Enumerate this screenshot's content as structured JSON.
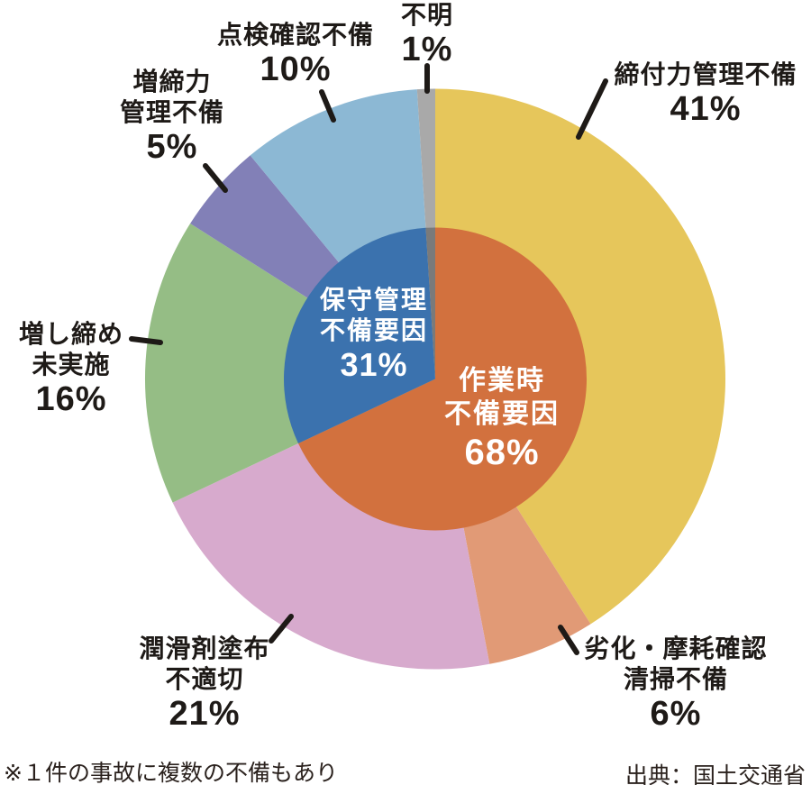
{
  "chart_data": {
    "type": "pie",
    "subtype": "nested-donut",
    "direction": "clockwise",
    "start_angle_deg": 0,
    "outer_ring": {
      "slices": [
        {
          "label": "締付力管理不備",
          "label_lines": [
            "締付力管理不備"
          ],
          "pct_label": "41%",
          "value": 41,
          "color": "#e6c65b"
        },
        {
          "label": "劣化・摩耗確認清掃不備",
          "label_lines": [
            "劣化・摩耗確認",
            "清掃不備"
          ],
          "pct_label": "6%",
          "value": 6,
          "color": "#e19a76"
        },
        {
          "label": "潤滑剤塗布不適切",
          "label_lines": [
            "潤滑剤塗布",
            "不適切"
          ],
          "pct_label": "21%",
          "value": 21,
          "color": "#d7aacd"
        },
        {
          "label": "増し締め未実施",
          "label_lines": [
            "増し締め",
            "未実施"
          ],
          "pct_label": "16%",
          "value": 16,
          "color": "#95bd85"
        },
        {
          "label": "増締力管理不備",
          "label_lines": [
            "増締力",
            "管理不備"
          ],
          "pct_label": "5%",
          "value": 5,
          "color": "#8280b7"
        },
        {
          "label": "点検確認不備",
          "label_lines": [
            "点検確認不備"
          ],
          "pct_label": "10%",
          "value": 10,
          "color": "#8cb8d4"
        },
        {
          "label": "不明",
          "label_lines": [
            "不明"
          ],
          "pct_label": "1%",
          "value": 1,
          "color": "#a9a9a9"
        }
      ]
    },
    "inner_pie": {
      "slices": [
        {
          "label": "作業時不備要因",
          "label_lines": [
            "作業時",
            "不備要因"
          ],
          "pct_label": "68%",
          "value": 68,
          "color": "#d2713e",
          "text_color": "#ffffff"
        },
        {
          "label": "保守管理不備要因",
          "label_lines": [
            "保守管理",
            "不備要因"
          ],
          "pct_label": "31%",
          "value": 31,
          "color": "#3b72ae",
          "text_color": "#ffffff"
        },
        {
          "label": "不明",
          "label_lines": [],
          "pct_label": "",
          "value": 1,
          "color": "#7a7a7a"
        }
      ]
    },
    "leader_line_color": "#1e1a17"
  },
  "footer": {
    "note": "※１件の事故に複数の不備もあり",
    "source": "出典：国土交通省"
  }
}
